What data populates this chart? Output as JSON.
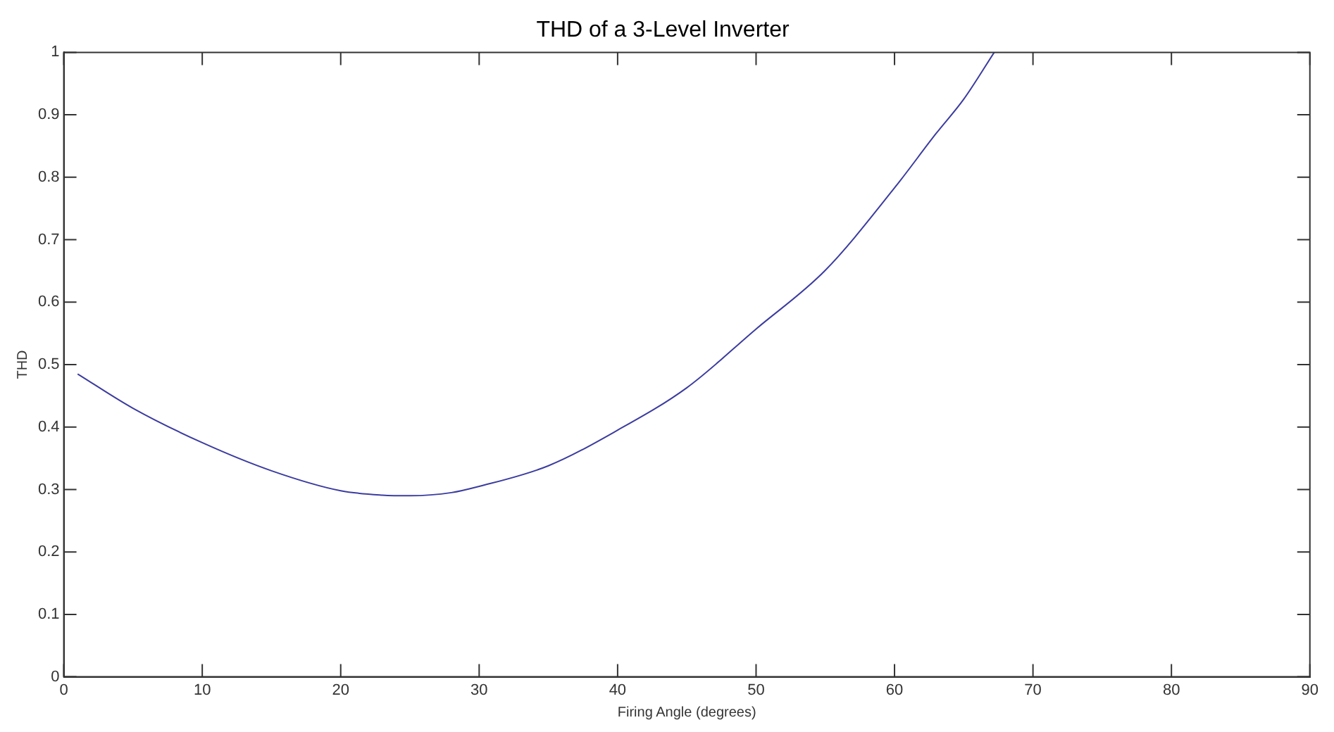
{
  "chart_data": {
    "type": "line",
    "title": "THD of a 3-Level Inverter",
    "xlabel": "Firing Angle (degrees)",
    "ylabel": "THD",
    "x": [
      1,
      5,
      10,
      15,
      20,
      23,
      25,
      28,
      30,
      35,
      40,
      45,
      50,
      55,
      60,
      63,
      65,
      67.2
    ],
    "series": [
      {
        "color": "#3c3ca0",
        "values": [
          0.485,
          0.43,
          0.375,
          0.33,
          0.298,
          0.291,
          0.29,
          0.295,
          0.305,
          0.338,
          0.395,
          0.463,
          0.557,
          0.651,
          0.783,
          0.87,
          0.925,
          1
        ]
      }
    ],
    "xlim": [
      0,
      90
    ],
    "xticks": [
      0,
      10,
      20,
      30,
      40,
      50,
      60,
      70,
      80,
      90
    ],
    "ylim": [
      0,
      1
    ],
    "yticks": [
      0,
      0.1,
      0.2,
      0.3,
      0.4,
      0.5,
      0.6,
      0.7,
      0.8,
      0.9,
      1
    ],
    "grid": false,
    "legend": false,
    "marker": "none",
    "line_style": "solid"
  }
}
